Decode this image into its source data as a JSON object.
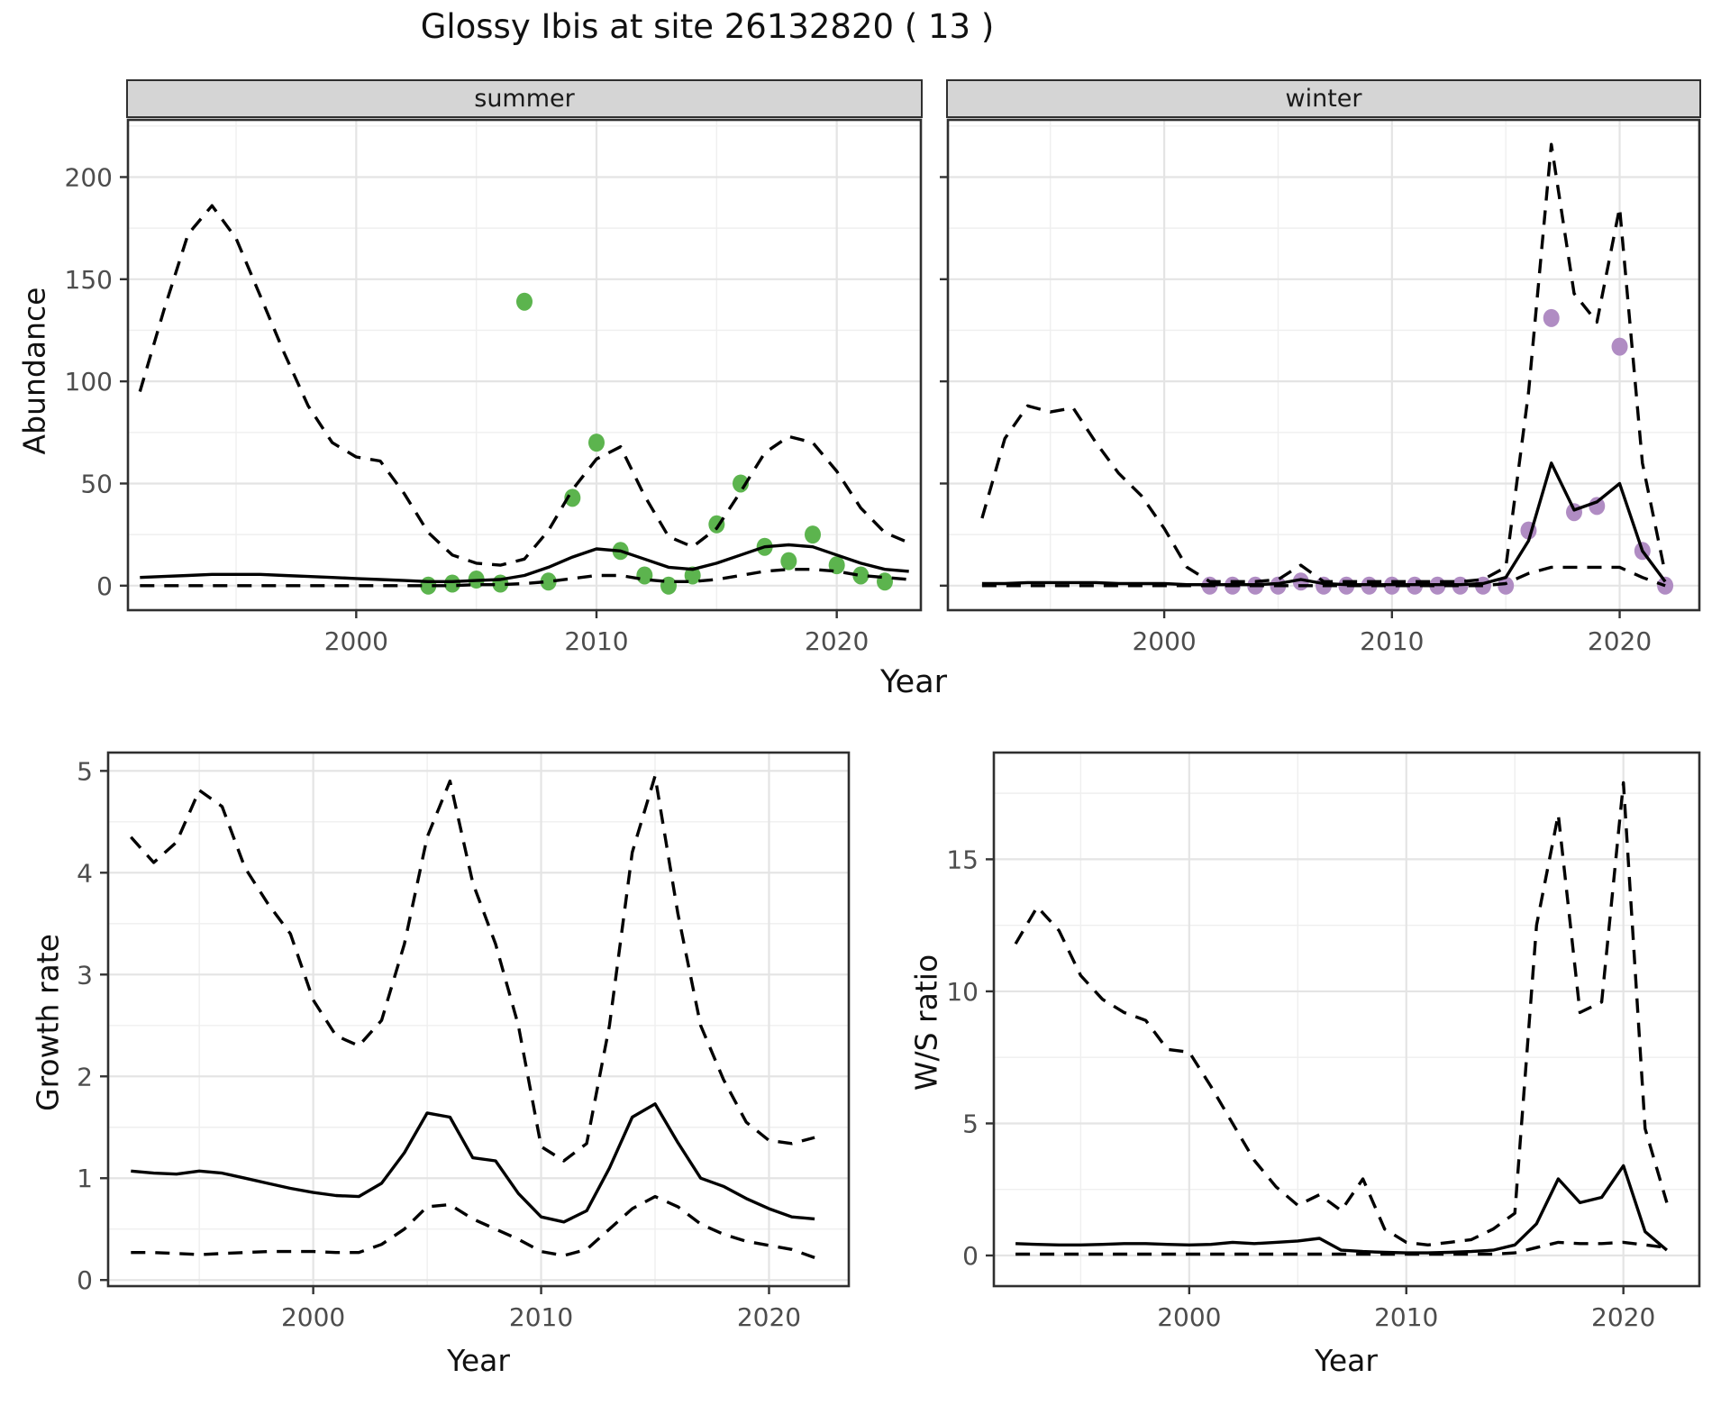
{
  "title": "Glossy Ibis at site 26132820 ( 13 )",
  "facets": {
    "summer_label": "summer",
    "winter_label": "winter"
  },
  "axis_titles": {
    "abundance": "Abundance",
    "growth_rate": "Growth rate",
    "ws_ratio": "W/S ratio",
    "year_top": "Year",
    "year_growth": "Year",
    "year_ws": "Year"
  },
  "colors": {
    "summer_point": "#5cb44e",
    "winter_point": "#b08cc3",
    "line": "#000000",
    "grid_major": "#e4e4e4",
    "grid_minor": "#efefef",
    "strip_bg": "#d5d5d5",
    "panel_border": "#2f2f2f",
    "tick_label": "#4d4d4d"
  },
  "chart_data": [
    {
      "name": "abundance_summer",
      "type": "line",
      "facet": "summer",
      "xlabel": "Year",
      "ylabel": "Abundance",
      "xlim": [
        1990.5,
        2023.5
      ],
      "ylim": [
        -12,
        228
      ],
      "xticks": [
        2000,
        2010,
        2020
      ],
      "yticks": [
        0,
        50,
        100,
        150,
        200
      ],
      "years": [
        1991,
        1992,
        1993,
        1994,
        1995,
        1996,
        1997,
        1998,
        1999,
        2000,
        2001,
        2002,
        2003,
        2004,
        2005,
        2006,
        2007,
        2008,
        2009,
        2010,
        2011,
        2012,
        2013,
        2014,
        2015,
        2016,
        2017,
        2018,
        2019,
        2020,
        2021,
        2022,
        2023
      ],
      "series": [
        {
          "name": "upper_ci",
          "style": "dashed",
          "values": [
            95,
            135,
            172,
            186,
            170,
            142,
            114,
            88,
            70,
            63,
            61,
            45,
            26,
            15,
            11,
            10,
            13,
            27,
            47,
            62,
            68,
            44,
            24,
            19,
            28,
            46,
            65,
            73,
            70,
            56,
            38,
            26,
            21
          ]
        },
        {
          "name": "estimate",
          "style": "solid",
          "values": [
            4,
            4.5,
            5,
            5.5,
            5.5,
            5.5,
            5,
            4.5,
            4,
            3.5,
            3,
            2.5,
            2,
            2,
            2.5,
            3,
            5,
            9,
            14,
            18,
            17,
            13,
            9,
            8,
            11,
            15,
            19,
            20,
            19,
            15,
            11,
            8,
            7
          ]
        },
        {
          "name": "lower_ci",
          "style": "dashed",
          "values": [
            0,
            0,
            0,
            0,
            0,
            0,
            0,
            0,
            0,
            0,
            0,
            0,
            0,
            0,
            0.5,
            0.5,
            1,
            2,
            3.5,
            5,
            5,
            3,
            2,
            2,
            3,
            5,
            7,
            8,
            8,
            7,
            5,
            4,
            3
          ]
        },
        {
          "name": "observed_counts",
          "style": "points",
          "color": "#5cb44e",
          "x": [
            2003,
            2004,
            2005,
            2006,
            2007,
            2008,
            2009,
            2010,
            2011,
            2012,
            2013,
            2014,
            2015,
            2016,
            2017,
            2018,
            2019,
            2020,
            2021,
            2022
          ],
          "y": [
            0,
            1,
            3,
            1,
            139,
            2,
            43,
            70,
            17,
            5,
            0,
            5,
            30,
            50,
            19,
            12,
            25,
            10,
            5,
            2
          ]
        }
      ]
    },
    {
      "name": "abundance_winter",
      "type": "line",
      "facet": "winter",
      "xlabel": "Year",
      "ylabel": "Abundance",
      "xlim": [
        1990.5,
        2023.5
      ],
      "ylim": [
        -12,
        228
      ],
      "xticks": [
        2000,
        2010,
        2020
      ],
      "yticks": [
        0,
        50,
        100,
        150,
        200
      ],
      "years": [
        1992,
        1993,
        1994,
        1995,
        1996,
        1997,
        1998,
        1999,
        2000,
        2001,
        2002,
        2003,
        2004,
        2005,
        2006,
        2007,
        2008,
        2009,
        2010,
        2011,
        2012,
        2013,
        2014,
        2015,
        2016,
        2017,
        2018,
        2019,
        2020,
        2021,
        2022
      ],
      "series": [
        {
          "name": "upper_ci",
          "style": "dashed",
          "values": [
            33,
            72,
            88,
            85,
            87,
            70,
            55,
            44,
            28,
            9,
            2,
            2,
            2,
            3,
            10,
            2,
            2,
            2,
            2,
            2,
            2,
            2,
            3,
            9,
            95,
            216,
            143,
            129,
            185,
            60,
            6
          ]
        },
        {
          "name": "estimate",
          "style": "solid",
          "values": [
            1,
            1,
            1.5,
            1.5,
            1.5,
            1.5,
            1,
            1,
            1,
            0.5,
            0.5,
            0.5,
            0.5,
            1,
            3,
            1,
            0.5,
            0.5,
            0.5,
            0.5,
            0.5,
            0.5,
            1,
            4,
            22,
            60,
            37,
            41,
            50,
            17,
            2
          ]
        },
        {
          "name": "lower_ci",
          "style": "dashed",
          "values": [
            0,
            0,
            0,
            0,
            0,
            0,
            0,
            0,
            0,
            0,
            0,
            0,
            0,
            0,
            0,
            0,
            0,
            0,
            0,
            0,
            0,
            0,
            0,
            1,
            6,
            9,
            9,
            9,
            9,
            4,
            0
          ]
        },
        {
          "name": "observed_counts",
          "style": "points",
          "color": "#b08cc3",
          "x": [
            2002,
            2003,
            2004,
            2005,
            2006,
            2007,
            2008,
            2009,
            2010,
            2011,
            2012,
            2013,
            2014,
            2015,
            2016,
            2017,
            2018,
            2019,
            2020,
            2021,
            2022
          ],
          "y": [
            0,
            0,
            0,
            0,
            2,
            0,
            0,
            0,
            0,
            0,
            0,
            0,
            0,
            0,
            27,
            131,
            36,
            39,
            117,
            17,
            0
          ]
        }
      ]
    },
    {
      "name": "growth_rate",
      "type": "line",
      "facet": null,
      "xlabel": "Year",
      "ylabel": "Growth rate",
      "xlim": [
        1991,
        2023.5
      ],
      "ylim": [
        -0.06,
        5.18
      ],
      "xticks": [
        2000,
        2010,
        2020
      ],
      "yticks": [
        0,
        1,
        2,
        3,
        4,
        5
      ],
      "years": [
        1992,
        1993,
        1994,
        1995,
        1996,
        1997,
        1998,
        1999,
        2000,
        2001,
        2002,
        2003,
        2004,
        2005,
        2006,
        2007,
        2008,
        2009,
        2010,
        2011,
        2012,
        2013,
        2014,
        2015,
        2016,
        2017,
        2018,
        2019,
        2020,
        2021,
        2022
      ],
      "series": [
        {
          "name": "upper_ci",
          "style": "dashed",
          "values": [
            4.35,
            4.1,
            4.3,
            4.81,
            4.65,
            4.05,
            3.7,
            3.4,
            2.75,
            2.4,
            2.3,
            2.55,
            3.3,
            4.35,
            4.9,
            3.9,
            3.3,
            2.5,
            1.31,
            1.17,
            1.34,
            2.5,
            4.2,
            4.95,
            3.6,
            2.5,
            1.97,
            1.55,
            1.37,
            1.34,
            1.4
          ]
        },
        {
          "name": "estimate",
          "style": "solid",
          "values": [
            1.07,
            1.05,
            1.04,
            1.07,
            1.05,
            1.0,
            0.95,
            0.9,
            0.86,
            0.83,
            0.82,
            0.95,
            1.25,
            1.64,
            1.6,
            1.2,
            1.17,
            0.85,
            0.62,
            0.57,
            0.68,
            1.1,
            1.6,
            1.73,
            1.35,
            1.0,
            0.92,
            0.8,
            0.7,
            0.62,
            0.6
          ]
        },
        {
          "name": "lower_ci",
          "style": "dashed",
          "values": [
            0.27,
            0.27,
            0.26,
            0.25,
            0.26,
            0.27,
            0.28,
            0.28,
            0.28,
            0.27,
            0.27,
            0.35,
            0.5,
            0.72,
            0.74,
            0.6,
            0.5,
            0.4,
            0.28,
            0.24,
            0.3,
            0.5,
            0.7,
            0.82,
            0.72,
            0.55,
            0.45,
            0.38,
            0.34,
            0.3,
            0.22
          ]
        }
      ]
    },
    {
      "name": "ws_ratio",
      "type": "line",
      "facet": null,
      "xlabel": "Year",
      "ylabel": "W/S ratio",
      "xlim": [
        1991,
        2023.5
      ],
      "ylim": [
        -1.16,
        19.04
      ],
      "xticks": [
        2000,
        2010,
        2020
      ],
      "yticks": [
        0,
        5,
        10,
        15
      ],
      "years": [
        1992,
        1993,
        1994,
        1995,
        1996,
        1997,
        1998,
        1999,
        2000,
        2001,
        2002,
        2003,
        2004,
        2005,
        2006,
        2007,
        2008,
        2009,
        2010,
        2011,
        2012,
        2013,
        2014,
        2015,
        2016,
        2017,
        2018,
        2019,
        2020,
        2021,
        2022
      ],
      "series": [
        {
          "name": "upper_ci",
          "style": "dashed",
          "values": [
            11.8,
            13.2,
            12.3,
            10.6,
            9.7,
            9.2,
            8.9,
            7.8,
            7.7,
            6.4,
            5.0,
            3.6,
            2.6,
            1.9,
            2.3,
            1.7,
            2.9,
            1.0,
            0.5,
            0.4,
            0.5,
            0.6,
            1.0,
            1.6,
            12.5,
            16.7,
            9.2,
            9.6,
            17.9,
            4.8,
            2.0
          ]
        },
        {
          "name": "estimate",
          "style": "solid",
          "values": [
            0.45,
            0.42,
            0.4,
            0.4,
            0.42,
            0.45,
            0.45,
            0.42,
            0.4,
            0.42,
            0.5,
            0.45,
            0.5,
            0.55,
            0.65,
            0.2,
            0.15,
            0.12,
            0.1,
            0.1,
            0.12,
            0.15,
            0.2,
            0.4,
            1.2,
            2.9,
            2.0,
            2.2,
            3.4,
            0.9,
            0.2
          ]
        },
        {
          "name": "lower_ci",
          "style": "dashed",
          "values": [
            0.05,
            0.05,
            0.05,
            0.05,
            0.05,
            0.05,
            0.05,
            0.05,
            0.05,
            0.05,
            0.05,
            0.05,
            0.05,
            0.05,
            0.05,
            0.05,
            0.05,
            0.05,
            0.05,
            0.05,
            0.05,
            0.05,
            0.05,
            0.1,
            0.3,
            0.5,
            0.45,
            0.45,
            0.5,
            0.4,
            0.3
          ]
        }
      ]
    }
  ]
}
